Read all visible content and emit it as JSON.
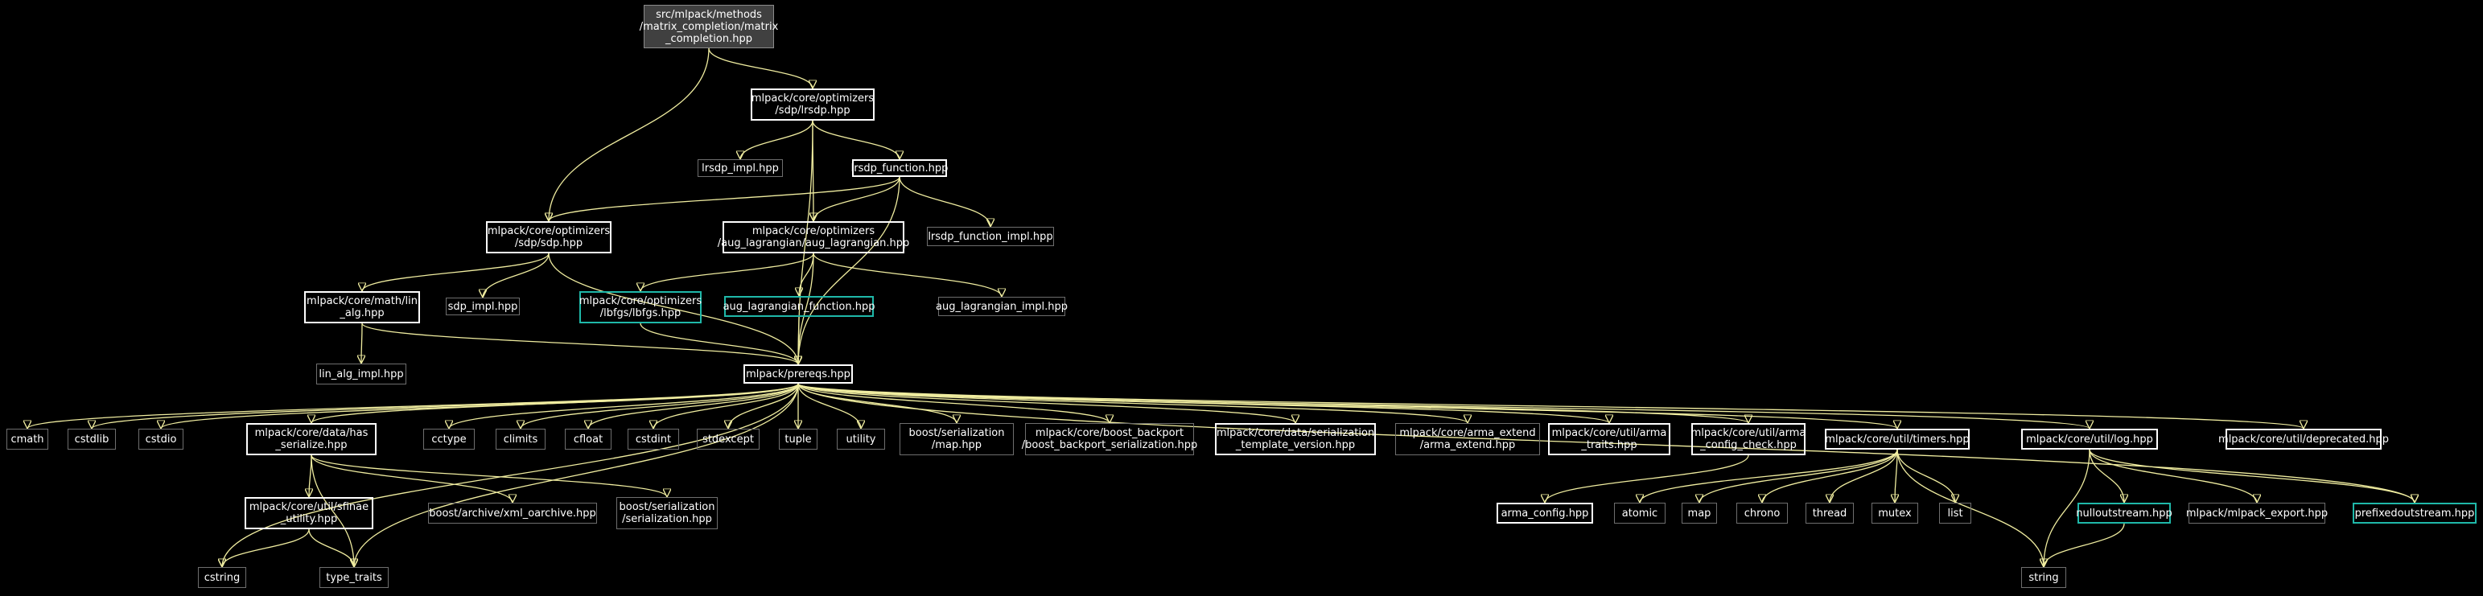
{
  "title": "",
  "colors": {
    "background": "#000000",
    "edge": "#f0eda0",
    "bold_border": "#ffffff",
    "gray_border": "#6e6e6e",
    "teal_border": "#1fb8a9",
    "root_fill": "#404040"
  },
  "nodes": [
    {
      "id": "root",
      "label": "src/mlpack/methods\n/matrix_completion/matrix\n_completion.hpp",
      "style": "root"
    },
    {
      "id": "lrsdp",
      "label": "mlpack/core/optimizers\n/sdp/lrsdp.hpp",
      "style": "bold"
    },
    {
      "id": "lrsdp_impl",
      "label": "lrsdp_impl.hpp",
      "style": "gray"
    },
    {
      "id": "lrsdp_function",
      "label": "lrsdp_function.hpp",
      "style": "bold"
    },
    {
      "id": "sdp",
      "label": "mlpack/core/optimizers\n/sdp/sdp.hpp",
      "style": "bold"
    },
    {
      "id": "aug_lagrangian",
      "label": "mlpack/core/optimizers\n/aug_lagrangian/aug_lagrangian.hpp",
      "style": "bold"
    },
    {
      "id": "lrsdp_function_impl",
      "label": "lrsdp_function_impl.hpp",
      "style": "gray"
    },
    {
      "id": "lin_alg",
      "label": "mlpack/core/math/lin\n_alg.hpp",
      "style": "bold"
    },
    {
      "id": "sdp_impl",
      "label": "sdp_impl.hpp",
      "style": "gray"
    },
    {
      "id": "lbfgs",
      "label": "mlpack/core/optimizers\n/lbfgs/lbfgs.hpp",
      "style": "teal"
    },
    {
      "id": "aug_lagrangian_function",
      "label": "aug_lagrangian_function.hpp",
      "style": "teal"
    },
    {
      "id": "aug_lagrangian_impl",
      "label": "aug_lagrangian_impl.hpp",
      "style": "gray"
    },
    {
      "id": "lin_alg_impl",
      "label": "lin_alg_impl.hpp",
      "style": "gray"
    },
    {
      "id": "prereqs",
      "label": "mlpack/prereqs.hpp",
      "style": "bold"
    },
    {
      "id": "cmath",
      "label": "cmath",
      "style": "gray"
    },
    {
      "id": "cstdlib",
      "label": "cstdlib",
      "style": "gray"
    },
    {
      "id": "cstdio",
      "label": "cstdio",
      "style": "gray"
    },
    {
      "id": "has_serialize",
      "label": "mlpack/core/data/has\n_serialize.hpp",
      "style": "bold"
    },
    {
      "id": "cctype",
      "label": "cctype",
      "style": "gray"
    },
    {
      "id": "climits",
      "label": "climits",
      "style": "gray"
    },
    {
      "id": "cfloat",
      "label": "cfloat",
      "style": "gray"
    },
    {
      "id": "cstdint",
      "label": "cstdint",
      "style": "gray"
    },
    {
      "id": "stdexcept",
      "label": "stdexcept",
      "style": "gray"
    },
    {
      "id": "tuple",
      "label": "tuple",
      "style": "gray"
    },
    {
      "id": "utility",
      "label": "utility",
      "style": "gray"
    },
    {
      "id": "boost_map",
      "label": "boost/serialization\n/map.hpp",
      "style": "gray"
    },
    {
      "id": "boost_backport",
      "label": "mlpack/core/boost_backport\n/boost_backport_serialization.hpp",
      "style": "gray"
    },
    {
      "id": "serialization_template",
      "label": "mlpack/core/data/serialization\n_template_version.hpp",
      "style": "bold"
    },
    {
      "id": "arma_extend",
      "label": "mlpack/core/arma_extend\n/arma_extend.hpp",
      "style": "gray"
    },
    {
      "id": "arma_traits",
      "label": "mlpack/core/util/arma\n_traits.hpp",
      "style": "bold"
    },
    {
      "id": "arma_config_check",
      "label": "mlpack/core/util/arma\n_config_check.hpp",
      "style": "bold"
    },
    {
      "id": "timers",
      "label": "mlpack/core/util/timers.hpp",
      "style": "bold"
    },
    {
      "id": "log",
      "label": "mlpack/core/util/log.hpp",
      "style": "bold"
    },
    {
      "id": "deprecated",
      "label": "mlpack/core/util/deprecated.hpp",
      "style": "bold"
    },
    {
      "id": "sfinae",
      "label": "mlpack/core/util/sfinae\n_utility.hpp",
      "style": "bold"
    },
    {
      "id": "xml_oarchive",
      "label": "boost/archive/xml_oarchive.hpp",
      "style": "gray"
    },
    {
      "id": "boost_serialization",
      "label": "boost/serialization\n/serialization.hpp",
      "style": "gray"
    },
    {
      "id": "arma_config",
      "label": "arma_config.hpp",
      "style": "bold"
    },
    {
      "id": "atomic",
      "label": "atomic",
      "style": "gray"
    },
    {
      "id": "map",
      "label": "map",
      "style": "gray"
    },
    {
      "id": "chrono",
      "label": "chrono",
      "style": "gray"
    },
    {
      "id": "thread",
      "label": "thread",
      "style": "gray"
    },
    {
      "id": "mutex",
      "label": "mutex",
      "style": "gray"
    },
    {
      "id": "list",
      "label": "list",
      "style": "gray"
    },
    {
      "id": "nulloutstream",
      "label": "nulloutstream.hpp",
      "style": "teal"
    },
    {
      "id": "mlpack_export",
      "label": "mlpack/mlpack_export.hpp",
      "style": "gray"
    },
    {
      "id": "prefixedoutstream",
      "label": "prefixedoutstream.hpp",
      "style": "teal"
    },
    {
      "id": "cstring",
      "label": "cstring",
      "style": "gray"
    },
    {
      "id": "type_traits",
      "label": "type_traits",
      "style": "gray"
    },
    {
      "id": "string",
      "label": "string",
      "style": "gray"
    }
  ],
  "edges": [
    [
      "root",
      "lrsdp"
    ],
    [
      "root",
      "sdp"
    ],
    [
      "lrsdp",
      "lrsdp_impl"
    ],
    [
      "lrsdp",
      "lrsdp_function"
    ],
    [
      "lrsdp",
      "aug_lagrangian"
    ],
    [
      "lrsdp",
      "prereqs"
    ],
    [
      "lrsdp_function",
      "sdp"
    ],
    [
      "lrsdp_function",
      "aug_lagrangian"
    ],
    [
      "lrsdp_function",
      "lrsdp_function_impl"
    ],
    [
      "lrsdp_function",
      "prereqs"
    ],
    [
      "sdp",
      "lin_alg"
    ],
    [
      "sdp",
      "sdp_impl"
    ],
    [
      "sdp",
      "prereqs"
    ],
    [
      "aug_lagrangian",
      "lbfgs"
    ],
    [
      "aug_lagrangian",
      "aug_lagrangian_function"
    ],
    [
      "aug_lagrangian",
      "aug_lagrangian_impl"
    ],
    [
      "aug_lagrangian",
      "prereqs"
    ],
    [
      "lin_alg",
      "lin_alg_impl"
    ],
    [
      "lin_alg",
      "prereqs"
    ],
    [
      "lbfgs",
      "prereqs"
    ],
    [
      "aug_lagrangian_function",
      "prereqs"
    ],
    [
      "prereqs",
      "cmath"
    ],
    [
      "prereqs",
      "cstdlib"
    ],
    [
      "prereqs",
      "cstdio"
    ],
    [
      "prereqs",
      "cstring"
    ],
    [
      "prereqs",
      "has_serialize"
    ],
    [
      "prereqs",
      "type_traits"
    ],
    [
      "prereqs",
      "cctype"
    ],
    [
      "prereqs",
      "climits"
    ],
    [
      "prereqs",
      "cfloat"
    ],
    [
      "prereqs",
      "cstdint"
    ],
    [
      "prereqs",
      "stdexcept"
    ],
    [
      "prereqs",
      "tuple"
    ],
    [
      "prereqs",
      "utility"
    ],
    [
      "prereqs",
      "boost_map"
    ],
    [
      "prereqs",
      "boost_backport"
    ],
    [
      "prereqs",
      "serialization_template"
    ],
    [
      "prereqs",
      "arma_extend"
    ],
    [
      "prereqs",
      "arma_traits"
    ],
    [
      "prereqs",
      "arma_config_check"
    ],
    [
      "prereqs",
      "timers"
    ],
    [
      "prereqs",
      "log"
    ],
    [
      "prereqs",
      "deprecated"
    ],
    [
      "prereqs",
      "prefixedoutstream"
    ],
    [
      "has_serialize",
      "sfinae"
    ],
    [
      "has_serialize",
      "xml_oarchive"
    ],
    [
      "has_serialize",
      "boost_serialization"
    ],
    [
      "has_serialize",
      "type_traits"
    ],
    [
      "sfinae",
      "cstring"
    ],
    [
      "sfinae",
      "type_traits"
    ],
    [
      "arma_config_check",
      "arma_config"
    ],
    [
      "timers",
      "atomic"
    ],
    [
      "timers",
      "map"
    ],
    [
      "timers",
      "chrono"
    ],
    [
      "timers",
      "thread"
    ],
    [
      "timers",
      "mutex"
    ],
    [
      "timers",
      "list"
    ],
    [
      "timers",
      "string"
    ],
    [
      "log",
      "nulloutstream"
    ],
    [
      "log",
      "mlpack_export"
    ],
    [
      "log",
      "prefixedoutstream"
    ],
    [
      "log",
      "string"
    ],
    [
      "nulloutstream",
      "string"
    ]
  ]
}
